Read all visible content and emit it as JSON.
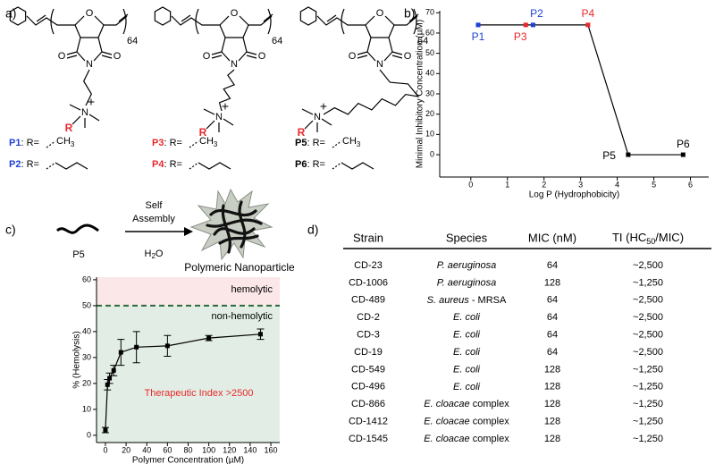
{
  "panel_labels": [
    "a)",
    "b)",
    "c)",
    "d)"
  ],
  "structures": {
    "repeat": "64",
    "oxygen": "O",
    "nitrogen": "N",
    "charge": "+",
    "r_group": "R"
  },
  "substituents": [
    {
      "polymer": "P1",
      "text": ": R=",
      "group": "CH",
      "group_sub": "3",
      "color": "#1f3fd6"
    },
    {
      "polymer": "P2",
      "text": ": R=",
      "color": "#1f3fd6"
    },
    {
      "polymer": "P3",
      "text": ": R=",
      "group": "CH",
      "group_sub": "3",
      "color": "#e8282b"
    },
    {
      "polymer": "P4",
      "text": ": R=",
      "color": "#e8282b"
    },
    {
      "polymer": "P5",
      "text": ": R=",
      "group": "CH",
      "group_sub": "3",
      "color": "#000000"
    },
    {
      "polymer": "P6",
      "text": ": R=",
      "color": "#000000"
    }
  ],
  "scheme": {
    "monomer": "P5",
    "arrow_top": [
      "Self",
      "Assembly"
    ],
    "arrow_bottom": [
      "H",
      "2",
      "O"
    ],
    "product": "Polymeric Nanoparticle"
  },
  "chart_data": [
    {
      "type": "line",
      "x": [
        0.2,
        1.5,
        1.7,
        3.2,
        4.3,
        5.8
      ],
      "values": [
        64,
        64,
        64,
        64,
        0,
        0
      ],
      "point_labels": [
        "P1",
        "P3",
        "P2",
        "P4",
        "P5",
        "P6"
      ],
      "point_colors": [
        "#1f3fd6",
        "#e8282b",
        "#1f3fd6",
        "#e8282b",
        "#000000",
        "#000000"
      ],
      "line_color": "#000000",
      "xlabel": "Log P (Hydrophobicity)",
      "ylabel": "Minimal Inhibitory Concentration (µM)",
      "xlim": [
        -0.85,
        6.5
      ],
      "ylim": [
        -11,
        71
      ],
      "xticks": [
        0,
        1,
        2,
        3,
        4,
        5,
        6
      ],
      "yticks": [
        0,
        10,
        20,
        30,
        40,
        50,
        60,
        70
      ]
    },
    {
      "type": "line",
      "x": [
        0,
        2,
        4,
        8,
        15,
        30,
        60,
        100,
        150
      ],
      "values": [
        2,
        19.5,
        22,
        25,
        32,
        34,
        34.5,
        37.5,
        39
      ],
      "errors": [
        1,
        2,
        2,
        2,
        5,
        6,
        4,
        1,
        2
      ],
      "line_color": "#000000",
      "xlabel": "Polymer Concentration (µM)",
      "ylabel": "% (Hemolysis)",
      "xlim": [
        -8.6,
        168.6
      ],
      "ylim": [
        -2.8,
        61
      ],
      "xticks": [
        0,
        20,
        40,
        60,
        80,
        100,
        120,
        140,
        160
      ],
      "yticks": [
        0,
        10,
        20,
        30,
        40,
        50,
        60
      ],
      "threshold": 50,
      "annotations": {
        "above": "hemolytic",
        "below": "non-hemolytic",
        "note": "Therapeutic Index >2500"
      },
      "colors": {
        "above": "#fbe6e8",
        "below": "#e2eee5",
        "threshold": "#2e6b3e",
        "note": "#e8282b"
      }
    }
  ],
  "table": {
    "columns": [
      "Strain",
      "Species",
      "MIC (nM)",
      {
        "parts": [
          "TI (HC",
          "50",
          "/MIC)"
        ]
      }
    ],
    "rows": [
      {
        "strain": "CD-23",
        "species": "P. aeruginosa",
        "mic": 64,
        "ti": "~2,500"
      },
      {
        "strain": "CD-1006",
        "species": "P. aeruginosa",
        "mic": 128,
        "ti": "~1,250"
      },
      {
        "strain": "CD-489",
        "species": "S. aureus",
        "species_note": "- MRSA",
        "mic": 64,
        "ti": "~2,500"
      },
      {
        "strain": "CD-2",
        "species": "E. coli",
        "mic": 64,
        "ti": "~2,500"
      },
      {
        "strain": "CD-3",
        "species": "E. coli",
        "mic": 64,
        "ti": "~2,500"
      },
      {
        "strain": "CD-19",
        "species": "E. coli",
        "mic": 64,
        "ti": "~2,500"
      },
      {
        "strain": "CD-549",
        "species": "E. coli",
        "mic": 128,
        "ti": "~1,250"
      },
      {
        "strain": "CD-496",
        "species": "E. coli",
        "mic": 128,
        "ti": "~1,250"
      },
      {
        "strain": "CD-866",
        "species": "E. cloacae",
        "species_note": "complex",
        "mic": 128,
        "ti": "~1,250"
      },
      {
        "strain": "CD-1412",
        "species": "E. cloacae",
        "species_note": "complex",
        "mic": 128,
        "ti": "~1,250"
      },
      {
        "strain": "CD-1545",
        "species": "E. cloacae",
        "species_note": "complex",
        "mic": 128,
        "ti": "~1,250"
      }
    ]
  }
}
